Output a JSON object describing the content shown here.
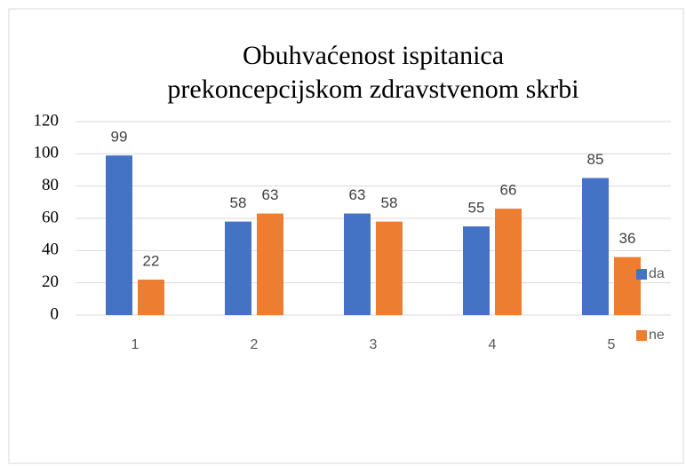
{
  "chart_data": {
    "type": "bar",
    "title": [
      "Obuhvaćenost ispitanica",
      "prekoncepcijskom zdravstvenom  skrbi"
    ],
    "categories": [
      "1",
      "2",
      "3",
      "4",
      "5"
    ],
    "series": [
      {
        "name": "da",
        "color": "#4472c4",
        "values": [
          99,
          58,
          63,
          55,
          85
        ]
      },
      {
        "name": "ne",
        "color": "#ed7d31",
        "values": [
          22,
          63,
          58,
          66,
          36
        ]
      }
    ],
    "ylim": [
      0,
      120
    ],
    "yticks": [
      0,
      20,
      40,
      60,
      80,
      100,
      120
    ],
    "grid": true,
    "legend": "right",
    "data_labels": true
  }
}
